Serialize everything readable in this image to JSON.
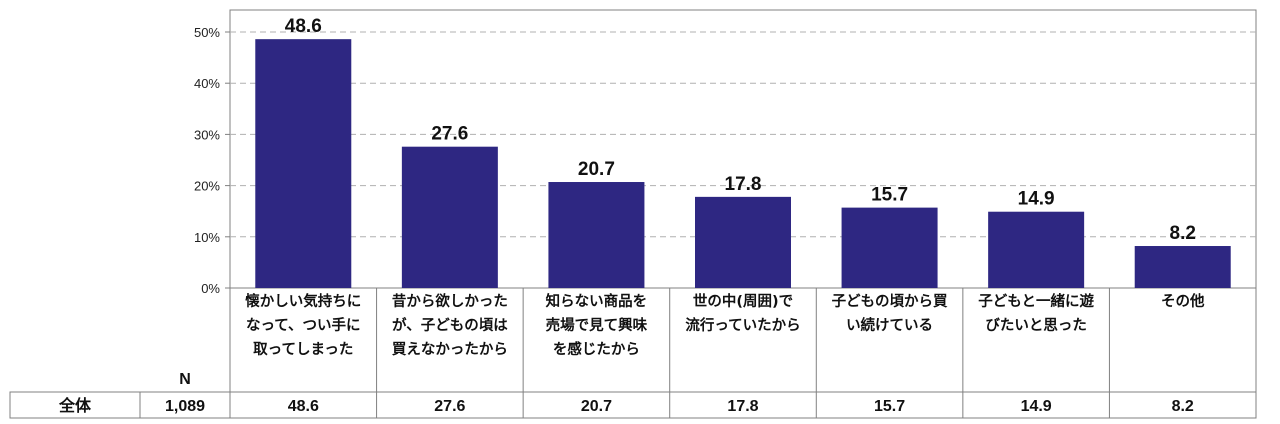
{
  "chart_data": {
    "type": "bar",
    "title": "",
    "xlabel": "",
    "ylabel": "",
    "ylim": [
      0,
      50
    ],
    "yticks": [
      0,
      10,
      20,
      30,
      40,
      50
    ],
    "ytick_labels": [
      "0%",
      "10%",
      "20%",
      "30%",
      "40%",
      "50%"
    ],
    "grid": true,
    "bar_color": "#2e2782",
    "categories": [
      [
        "懐かしい気持ちに",
        "なって、つい手に",
        "取ってしまった"
      ],
      [
        "昔から欲しかった",
        "が、子どもの頃は",
        "買えなかったから"
      ],
      [
        "知らない商品を",
        "売場で見て興味",
        "を感じたから"
      ],
      [
        "世の中(周囲)で",
        "流行っていたから"
      ],
      [
        "子どもの頃から買",
        "い続けている"
      ],
      [
        "子どもと一緒に遊",
        "びたいと思った"
      ],
      [
        "その他"
      ]
    ],
    "values": [
      48.6,
      27.6,
      20.7,
      17.8,
      15.7,
      14.9,
      8.2
    ],
    "data_labels": [
      "48.6",
      "27.6",
      "20.7",
      "17.8",
      "15.7",
      "14.9",
      "8.2"
    ]
  },
  "table": {
    "n_header": "N",
    "row_label": "全体",
    "n_value": "1,089",
    "cells": [
      "48.6",
      "27.6",
      "20.7",
      "17.8",
      "15.7",
      "14.9",
      "8.2"
    ]
  }
}
